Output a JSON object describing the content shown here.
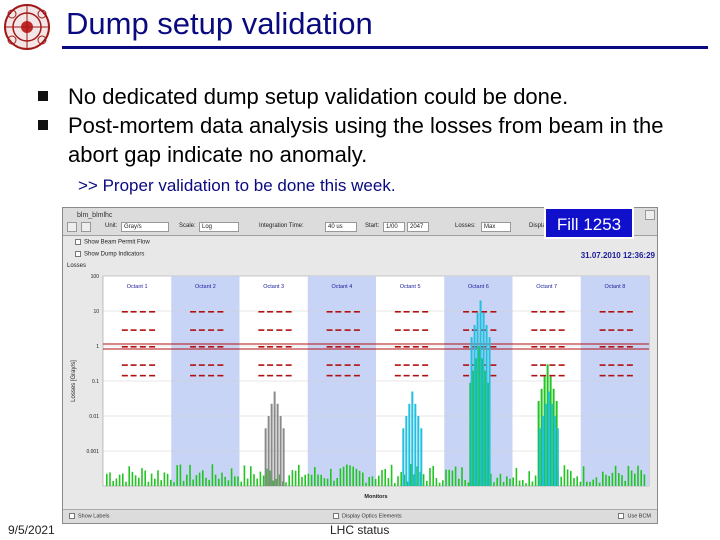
{
  "slide": {
    "title": "Dump setup validation",
    "bullets": [
      "No dedicated dump setup validation could be done.",
      "Post-mortem data analysis using the losses from beam in the abort gap indicate no anomaly."
    ],
    "sub_bullet": ">> Proper validation to be done this week.",
    "footer_date": "9/5/2021",
    "footer_center": "LHC status",
    "fill_badge": "Fill 1253"
  },
  "app": {
    "window_title": "blm_blmlhc",
    "toolbar": {
      "unit_label": "Unit:",
      "unit_value": "Gray/s",
      "scale_label": "Scale:",
      "scale_value": "Log",
      "integration_label": "Integration Time:",
      "integration_value": "40 us",
      "start_label": "Start:",
      "start_value": "1/00",
      "end_value": "2047",
      "losses_label": "Losses:",
      "losses_value": "Max",
      "display_label": "Display"
    },
    "row2_label": "Show Beam Permit Flow",
    "row3_label": "Show Dump Indicators",
    "date_time": "31.07.2010 12:36:29",
    "losses_title": "Losses",
    "bottom_left": "Show Labels",
    "bottom_mid": "Display Optics Elements",
    "bottom_right": "Use BCM"
  },
  "chart_data": {
    "type": "bar",
    "title": "",
    "xlabel": "Monitors",
    "ylabel": "Losses [Gray/s]",
    "yscale": "log",
    "ylim": [
      0.0001,
      100
    ],
    "yticks": [
      "100",
      "10",
      "1",
      "0.1",
      "0.01",
      "0.001"
    ],
    "octants": [
      "Octant 1",
      "Octant 2",
      "Octant 3",
      "Octant 4",
      "Octant 5",
      "Octant 6",
      "Octant 7",
      "Octant 8"
    ],
    "shaded_octants": [
      2,
      4,
      6,
      8
    ],
    "colors": {
      "threshold": "#b01010",
      "green_bars": "#22c422",
      "cyan_bars": "#22c0e0",
      "gray_bars": "#8a8a8a",
      "band": "#c8d4f6"
    },
    "spike_series": [
      {
        "octant": 3,
        "color": "gray",
        "value": 0.05
      },
      {
        "octant": 5,
        "color": "cyan",
        "value": 0.05
      },
      {
        "octant": 6,
        "color": "green",
        "value": 1
      },
      {
        "octant": 6,
        "color": "cyan",
        "value": 20
      },
      {
        "octant": 7,
        "color": "green",
        "value": 0.3
      },
      {
        "octant": 7,
        "color": "cyan",
        "value": 0.05
      }
    ]
  }
}
